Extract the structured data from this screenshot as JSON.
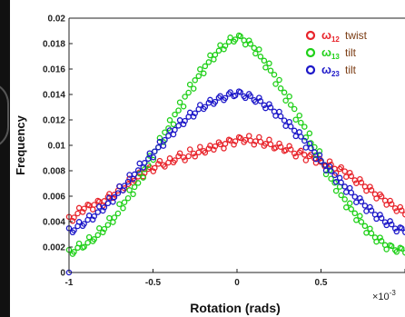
{
  "chart_data": {
    "type": "scatter",
    "title": "",
    "xlabel": "Rotation (rads)",
    "ylabel": "Frequency",
    "x_multiplier": "×10",
    "x_multiplier_exp": "-3",
    "xlim": [
      -1,
      1
    ],
    "ylim": [
      0,
      0.02
    ],
    "xticks": [
      -1,
      -0.5,
      0,
      0.5,
      1
    ],
    "xtick_labels": [
      "-1",
      "-0.5",
      "0",
      "0.5",
      ""
    ],
    "yticks": [
      0,
      0.002,
      0.004,
      0.006,
      0.008,
      0.01,
      0.012,
      0.014,
      0.016,
      0.018,
      0.02
    ],
    "ytick_labels": [
      "0",
      "0.002",
      "0.004",
      "0.006",
      "0.008",
      "0.01",
      "0.012",
      "0.014",
      "0.016",
      "0.018",
      "0.02"
    ],
    "grid": false,
    "legend_position": "top-right",
    "marker": "open-circle",
    "x": [
      -1.0,
      -0.97,
      -0.94,
      -0.91,
      -0.88,
      -0.85,
      -0.82,
      -0.79,
      -0.76,
      -0.73,
      -0.7,
      -0.67,
      -0.64,
      -0.61,
      -0.58,
      -0.55,
      -0.52,
      -0.49,
      -0.46,
      -0.43,
      -0.4,
      -0.37,
      -0.34,
      -0.31,
      -0.28,
      -0.25,
      -0.22,
      -0.19,
      -0.16,
      -0.13,
      -0.1,
      -0.07,
      -0.04,
      -0.01,
      0.02,
      0.05,
      0.08,
      0.11,
      0.14,
      0.17,
      0.2,
      0.23,
      0.26,
      0.29,
      0.32,
      0.35,
      0.38,
      0.41,
      0.44,
      0.47,
      0.5,
      0.53,
      0.56,
      0.59,
      0.62,
      0.65,
      0.68,
      0.71,
      0.74,
      0.77,
      0.8,
      0.83,
      0.86,
      0.89,
      0.92,
      0.95,
      0.98
    ],
    "series": [
      {
        "name": "twist",
        "symbol": "ω",
        "subscript": "12",
        "color": "#e8242b",
        "values": [
          0.0042,
          0.0045,
          0.0049,
          0.0052,
          0.0051,
          0.0055,
          0.0054,
          0.0058,
          0.006,
          0.0063,
          0.0066,
          0.0068,
          0.0072,
          0.0074,
          0.0077,
          0.008,
          0.0081,
          0.0084,
          0.0086,
          0.0085,
          0.0088,
          0.009,
          0.0092,
          0.009,
          0.0095,
          0.0093,
          0.0097,
          0.0096,
          0.0098,
          0.0101,
          0.0099,
          0.0103,
          0.0102,
          0.0105,
          0.0104,
          0.0106,
          0.0102,
          0.0105,
          0.0101,
          0.0103,
          0.0099,
          0.01,
          0.0097,
          0.0098,
          0.0095,
          0.0093,
          0.0094,
          0.009,
          0.0091,
          0.0088,
          0.0085,
          0.0086,
          0.0083,
          0.008,
          0.0081,
          0.0077,
          0.0074,
          0.0072,
          0.0069,
          0.0066,
          0.0063,
          0.006,
          0.0058,
          0.0055,
          0.0052,
          0.005,
          0.0047
        ]
      },
      {
        "name": "tilt",
        "symbol": "ω",
        "subscript": "13",
        "color": "#1fd018",
        "values": [
          0.0016,
          0.0018,
          0.0021,
          0.0022,
          0.0026,
          0.0028,
          0.0033,
          0.0036,
          0.0041,
          0.0045,
          0.0052,
          0.0057,
          0.0063,
          0.0069,
          0.0076,
          0.0083,
          0.009,
          0.0097,
          0.0104,
          0.0112,
          0.0118,
          0.0126,
          0.0132,
          0.014,
          0.0146,
          0.0153,
          0.0158,
          0.0164,
          0.0169,
          0.0173,
          0.0177,
          0.018,
          0.0183,
          0.0185,
          0.0184,
          0.0181,
          0.0178,
          0.0174,
          0.0168,
          0.0163,
          0.0157,
          0.015,
          0.0143,
          0.0137,
          0.013,
          0.0122,
          0.0116,
          0.0108,
          0.01,
          0.0094,
          0.0086,
          0.0079,
          0.0072,
          0.0066,
          0.0059,
          0.0053,
          0.0048,
          0.0043,
          0.0038,
          0.0033,
          0.0029,
          0.0026,
          0.0023,
          0.002,
          0.0019,
          0.0018,
          0.0017
        ]
      },
      {
        "name": "tilt",
        "symbol": "ω",
        "subscript": "23",
        "color": "#1c17c8",
        "values": [
          0.0033,
          0.0035,
          0.0038,
          0.004,
          0.0043,
          0.0046,
          0.005,
          0.0053,
          0.0057,
          0.0061,
          0.0066,
          0.007,
          0.0075,
          0.0079,
          0.0084,
          0.0088,
          0.0092,
          0.0097,
          0.0101,
          0.0106,
          0.011,
          0.0114,
          0.0118,
          0.0121,
          0.0124,
          0.0127,
          0.013,
          0.0132,
          0.0134,
          0.0136,
          0.0137,
          0.0139,
          0.014,
          0.0141,
          0.014,
          0.0139,
          0.0137,
          0.0136,
          0.0133,
          0.0131,
          0.0128,
          0.0125,
          0.0121,
          0.0117,
          0.0113,
          0.0109,
          0.0105,
          0.01,
          0.0096,
          0.0091,
          0.0086,
          0.0082,
          0.0078,
          0.0073,
          0.0069,
          0.0065,
          0.0061,
          0.0057,
          0.0054,
          0.005,
          0.0047,
          0.0044,
          0.0041,
          0.0039,
          0.0036,
          0.0034,
          0.0033
        ]
      }
    ]
  }
}
